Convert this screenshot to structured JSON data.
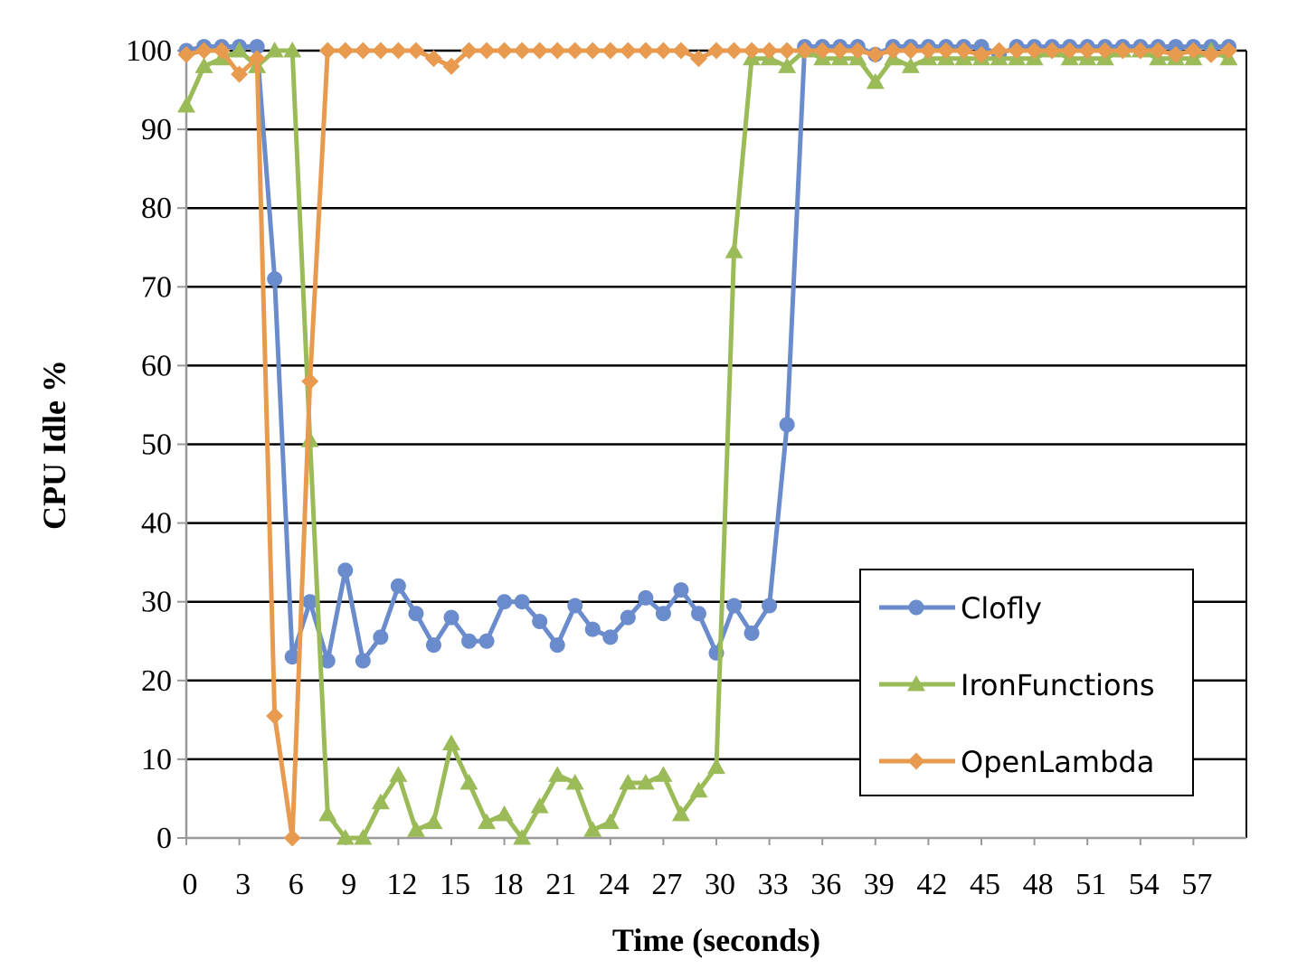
{
  "chart_data": {
    "type": "line",
    "xlabel": "Time (seconds)",
    "ylabel": "CPU Idle %",
    "ylim": [
      0,
      100
    ],
    "xlim": [
      0,
      60
    ],
    "x_ticks": [
      "0",
      "3",
      "6",
      "9",
      "12",
      "15",
      "18",
      "21",
      "24",
      "27",
      "30",
      "33",
      "36",
      "39",
      "42",
      "45",
      "48",
      "51",
      "54",
      "57"
    ],
    "y_ticks": [
      "0",
      "10",
      "20",
      "30",
      "40",
      "50",
      "60",
      "70",
      "80",
      "90",
      "100"
    ],
    "grid": "horizontal",
    "legend_position": "lower-right",
    "x": [
      0,
      1,
      2,
      3,
      4,
      5,
      6,
      7,
      8,
      9,
      10,
      11,
      12,
      13,
      14,
      15,
      16,
      17,
      18,
      19,
      20,
      21,
      22,
      23,
      24,
      25,
      26,
      27,
      28,
      29,
      30,
      31,
      32,
      33,
      34,
      35,
      36,
      37,
      38,
      39,
      40,
      41,
      42,
      43,
      44,
      45,
      46,
      47,
      48,
      49,
      50,
      51,
      52,
      53,
      54,
      55,
      56,
      57,
      58,
      59
    ],
    "series": [
      {
        "name": "Clofly",
        "color": "#6a8ccc",
        "marker": "circle",
        "values": [
          100,
          100.5,
          100.5,
          100.5,
          100.5,
          71,
          23,
          30,
          22.5,
          34,
          22.5,
          25.5,
          32,
          28.5,
          24.5,
          28,
          25,
          25,
          30,
          30,
          27.5,
          24.5,
          29.5,
          26.5,
          25.5,
          28,
          30.5,
          28.5,
          31.5,
          28.5,
          23.5,
          29.5,
          26,
          29.5,
          52.5,
          100.5,
          100.5,
          100.5,
          100.5,
          99.5,
          100.5,
          100.5,
          100.5,
          100.5,
          100.5,
          100.5,
          99.5,
          100.5,
          100.5,
          100.5,
          100.5,
          100.5,
          100.5,
          100.5,
          100.5,
          100.5,
          100.5,
          100.5,
          100.5,
          100.5
        ]
      },
      {
        "name": "IronFunctions",
        "color": "#9bbb59",
        "marker": "triangle",
        "values": [
          93,
          98,
          99,
          100,
          98,
          100,
          100,
          50.5,
          3,
          0,
          0,
          4.5,
          8,
          1,
          2,
          12,
          7,
          2,
          3,
          0,
          4,
          8,
          7,
          1,
          2,
          7,
          7,
          8,
          3,
          6,
          9,
          74.5,
          99,
          99,
          98,
          100,
          99,
          99,
          99,
          96,
          99,
          98,
          99,
          99,
          99,
          99,
          99,
          99,
          99,
          100,
          99,
          99,
          99,
          100,
          100,
          99,
          99,
          99,
          100,
          99
        ]
      },
      {
        "name": "OpenLambda",
        "color": "#e89a4e",
        "marker": "diamond",
        "values": [
          99.5,
          100,
          100,
          97,
          99,
          15.5,
          0,
          58,
          100,
          100,
          100,
          100,
          100,
          100,
          99,
          98,
          100,
          100,
          100,
          100,
          100,
          100,
          100,
          100,
          100,
          100,
          100,
          100,
          100,
          99,
          100,
          100,
          100,
          100,
          100,
          100,
          100,
          100,
          100,
          99.5,
          100,
          100,
          100,
          100,
          100,
          99.5,
          100,
          100,
          100,
          100,
          100,
          100,
          100,
          100,
          100,
          100,
          99.5,
          100,
          99.5,
          100
        ]
      }
    ]
  }
}
